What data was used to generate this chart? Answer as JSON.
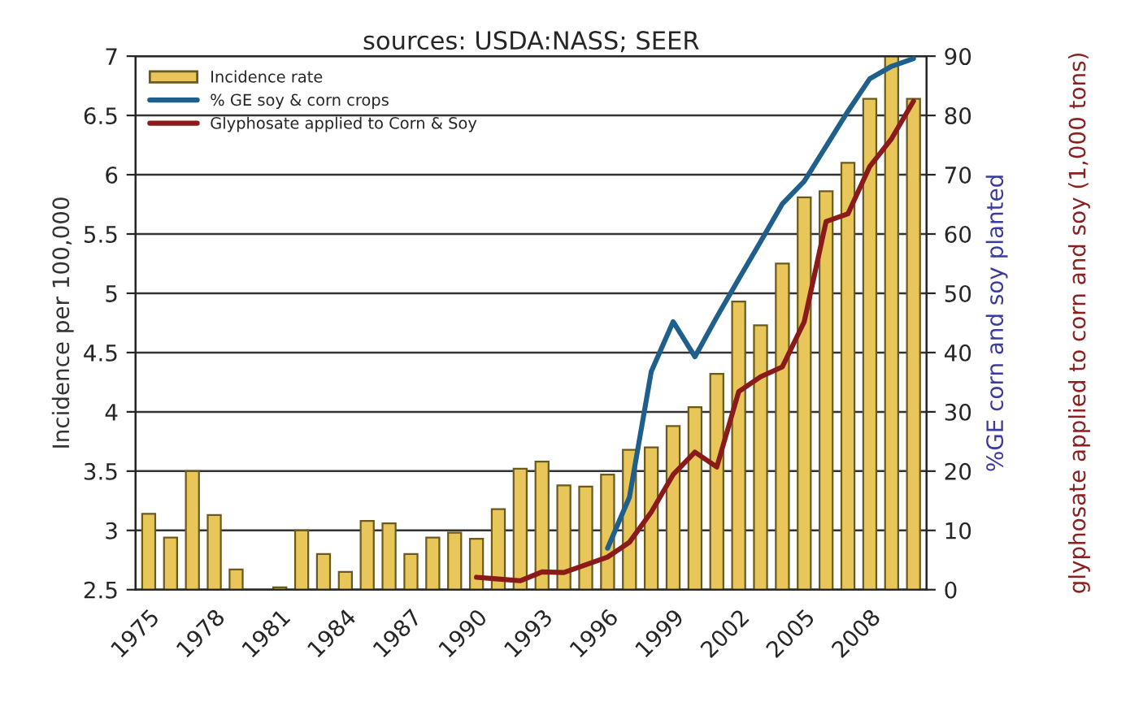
{
  "chart_data": {
    "type": "bar",
    "title": "sources: USDA:NASS; SEER",
    "ylabel": "Incidence per 100,000",
    "y2label": "%GE corn and soy planted",
    "annotations": [
      "glyphosate applied to corn and soy (1,000 tons)"
    ],
    "categories": [
      "1975",
      null,
      null,
      "1978",
      null,
      null,
      "1981",
      null,
      null,
      "1984",
      null,
      null,
      "1987",
      null,
      null,
      "1990",
      null,
      null,
      "1993",
      null,
      null,
      "1996",
      null,
      null,
      "1999",
      null,
      null,
      "2002",
      null,
      null,
      "2005",
      null,
      null,
      "2008",
      null,
      null
    ],
    "series": [
      {
        "name": "Incidence rate",
        "color": "#e8c65a",
        "values": [
          3.14,
          2.94,
          3.5,
          3.13,
          2.67,
          null,
          2.52,
          3.0,
          2.8,
          2.65,
          3.08,
          3.06,
          2.8,
          2.94,
          2.98,
          2.93,
          3.18,
          3.52,
          3.58,
          3.38,
          3.37,
          3.47,
          3.68,
          3.7,
          3.88,
          4.04,
          4.32,
          4.93,
          4.73,
          5.25,
          5.81,
          5.86,
          6.1,
          6.64,
          7.0,
          6.64
        ]
      },
      {
        "name": "% GE soy & corn crops",
        "type": "line",
        "axis": "y2",
        "color": "#1f5f8b",
        "values": [
          null,
          null,
          null,
          null,
          null,
          null,
          null,
          null,
          null,
          null,
          null,
          null,
          null,
          null,
          null,
          null,
          null,
          null,
          null,
          null,
          null,
          7,
          15.6,
          36.8,
          45.2,
          39.3,
          46,
          52.4,
          58.7,
          65.1,
          68.9,
          74.8,
          80.7,
          86.2,
          88.3,
          89.6
        ]
      },
      {
        "name": "Glyphosate applied to Corn & Soy",
        "type": "line",
        "axis": "y2",
        "color": "#8b1a1a",
        "values": [
          null,
          null,
          null,
          null,
          null,
          null,
          null,
          null,
          null,
          null,
          null,
          null,
          null,
          null,
          null,
          2.1,
          1.8,
          1.5,
          3.0,
          2.9,
          4.2,
          5.5,
          8.0,
          13.1,
          19.4,
          23.2,
          20.7,
          33.4,
          35.9,
          37.6,
          45.2,
          62.1,
          63.4,
          71.4,
          76.1,
          82.4
        ]
      }
    ],
    "ylim": [
      2.5,
      7
    ],
    "yticks": [
      2.5,
      3,
      3.5,
      4,
      4.5,
      5,
      5.5,
      6,
      6.5,
      7
    ],
    "y2lim": [
      0,
      90
    ],
    "y2ticks": [
      0,
      10,
      20,
      30,
      40,
      50,
      60,
      70,
      80,
      90
    ],
    "grid": "y",
    "legend": "top left"
  }
}
